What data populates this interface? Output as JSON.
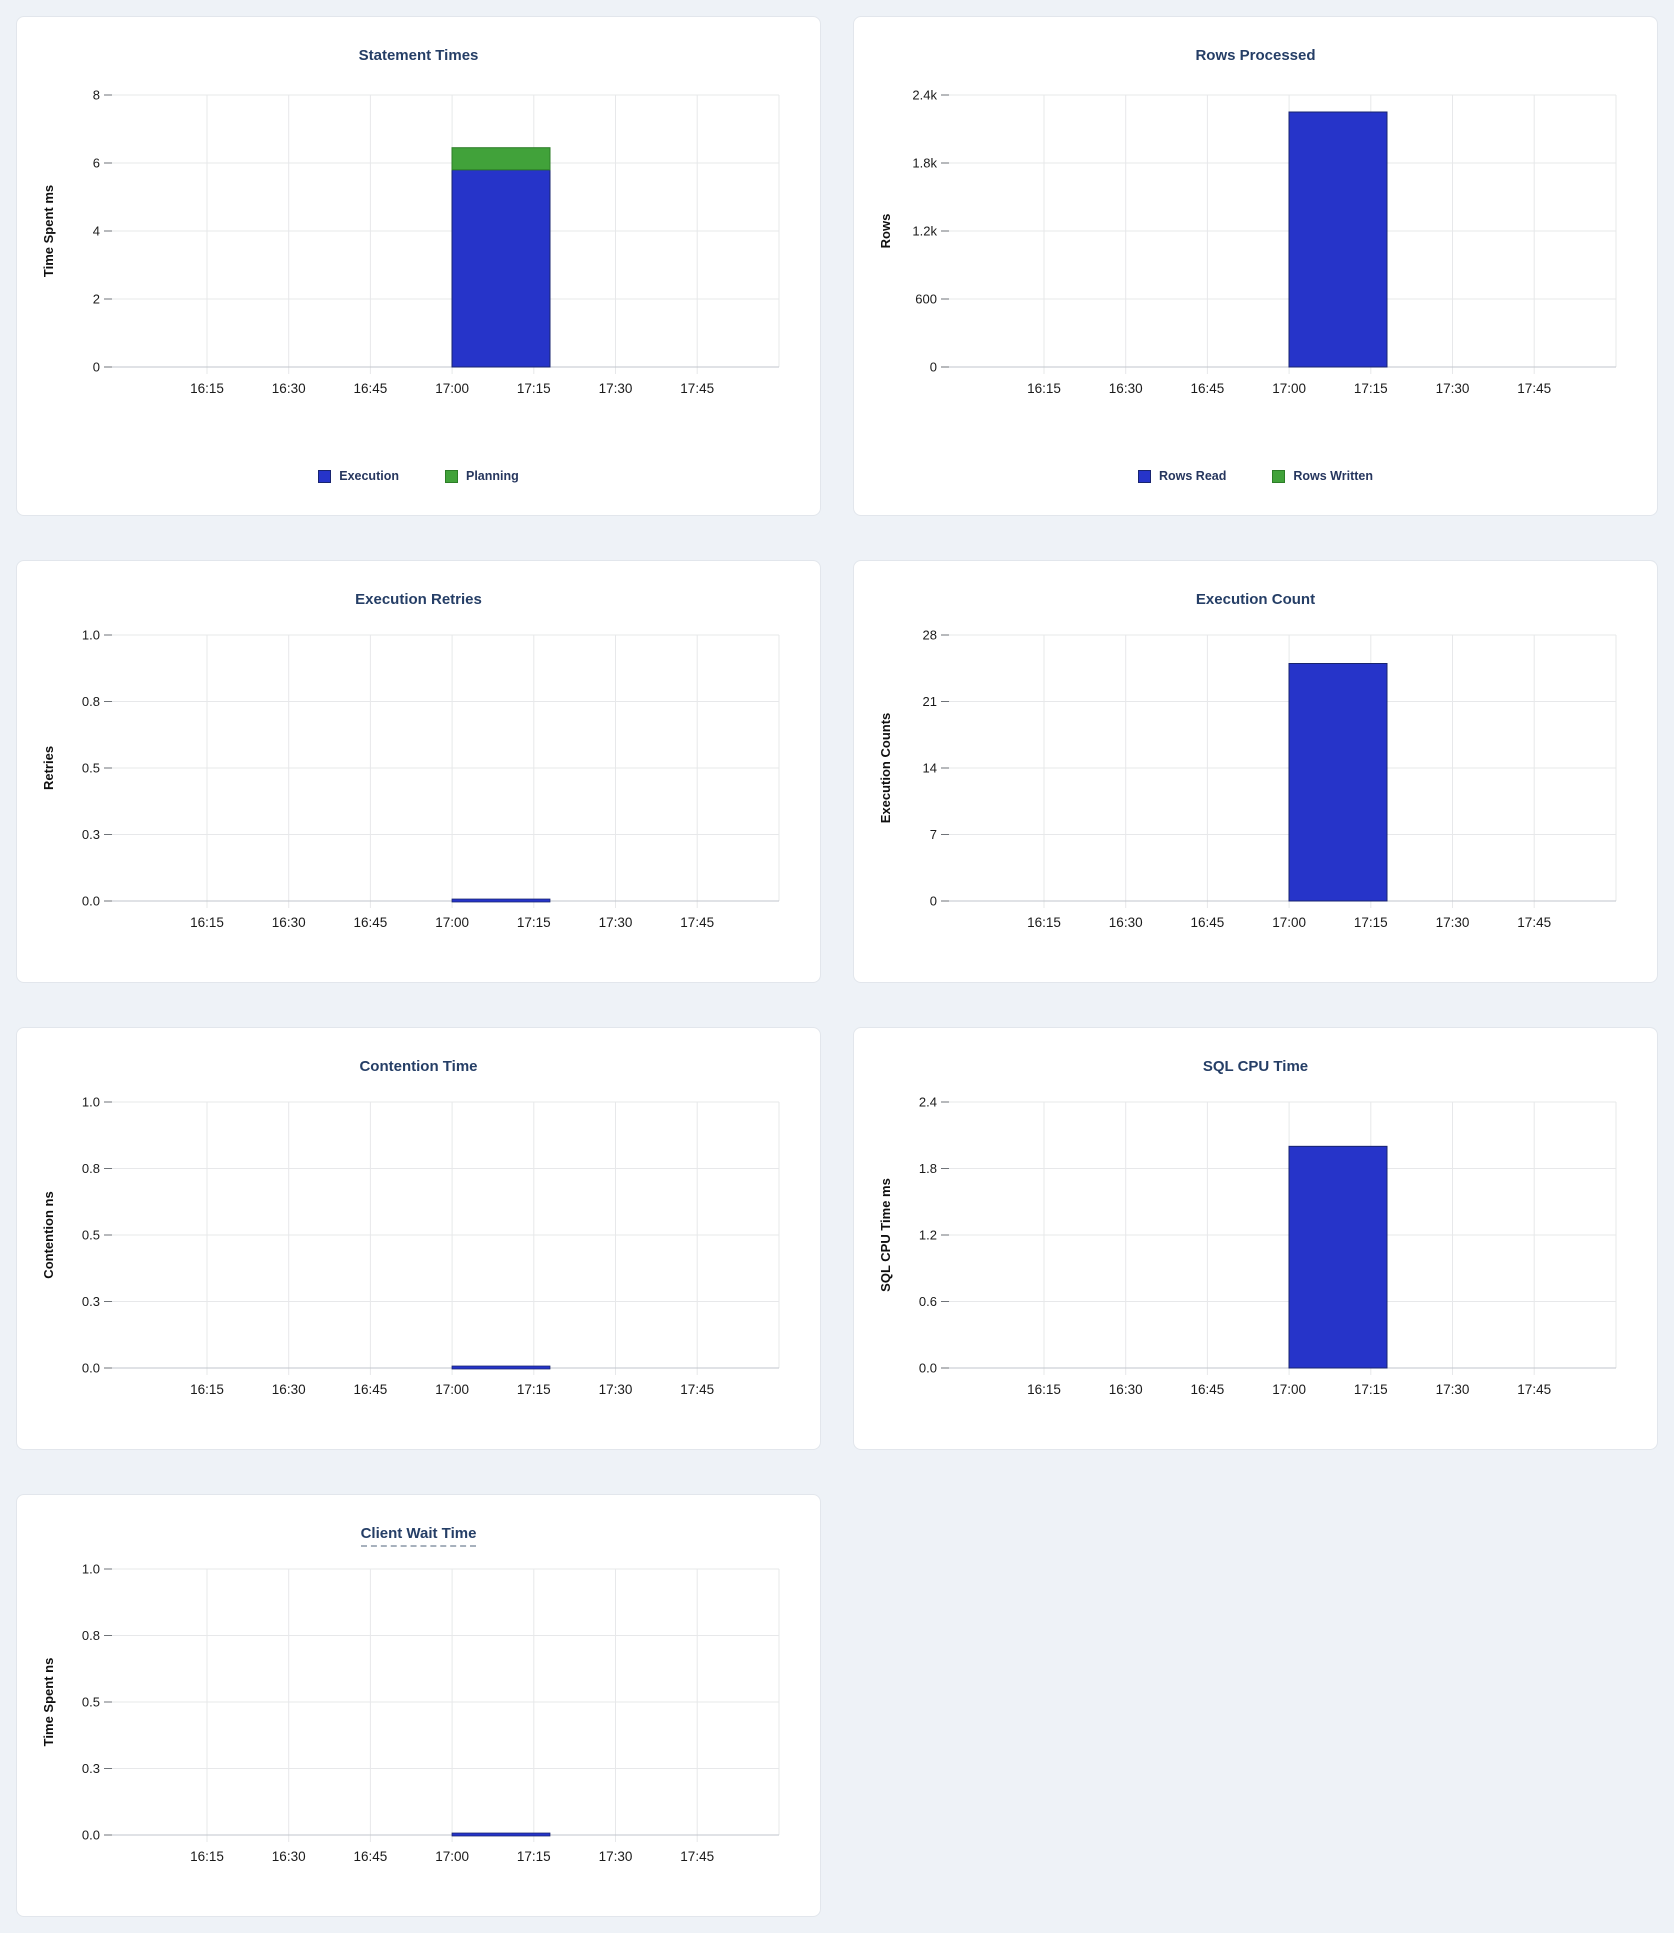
{
  "page": {
    "background": "#eef2f7",
    "card_background": "#ffffff",
    "card_border": "#e2e6ec"
  },
  "colors": {
    "title": "#253e66",
    "blue": "#2634c9",
    "blue_stroke": "#18246f",
    "green": "#41a23a",
    "green_stroke": "#2c7d27",
    "gridline": "#e7e8ea",
    "zero_line": "#c2c6cc",
    "tick_mark": "#6f7378",
    "tick_label": "#1a1a1a",
    "axis_label": "#0f0f0f"
  },
  "chart_data": [
    {
      "type": "bar",
      "title": "Statement Times",
      "title_underline": false,
      "ylabel": "Time Spent ms",
      "ylim": [
        0,
        8
      ],
      "ytick_labels": [
        "8",
        "6",
        "4",
        "2",
        "0"
      ],
      "xtick_labels": [
        "16:15",
        "16:30",
        "16:45",
        "17:00",
        "17:15",
        "17:30",
        "17:45"
      ],
      "grid": true,
      "legend_position": "bottom",
      "legend": [
        "Execution",
        "Planning"
      ],
      "bar_window": {
        "start": "17:00",
        "end": "17:18"
      },
      "series": [
        {
          "name": "Execution",
          "color": "blue",
          "value": 5.8
        },
        {
          "name": "Planning",
          "color": "green",
          "value": 0.65
        }
      ]
    },
    {
      "type": "bar",
      "title": "Rows Processed",
      "title_underline": false,
      "ylabel": "Rows",
      "ylim": [
        0,
        2400
      ],
      "ytick_labels": [
        "2.4k",
        "1.8k",
        "1.2k",
        "600",
        "0"
      ],
      "xtick_labels": [
        "16:15",
        "16:30",
        "16:45",
        "17:00",
        "17:15",
        "17:30",
        "17:45"
      ],
      "grid": true,
      "legend_position": "bottom",
      "legend": [
        "Rows Read",
        "Rows Written"
      ],
      "bar_window": {
        "start": "17:00",
        "end": "17:18"
      },
      "series": [
        {
          "name": "Rows Read",
          "color": "blue",
          "value": 2250
        },
        {
          "name": "Rows Written",
          "color": "green",
          "value": 0
        }
      ]
    },
    {
      "type": "bar",
      "title": "Execution Retries",
      "title_underline": false,
      "ylabel": "Retries",
      "ylim": [
        0,
        1
      ],
      "ytick_labels": [
        "1.0",
        "0.8",
        "0.5",
        "0.3",
        "0.0"
      ],
      "xtick_labels": [
        "16:15",
        "16:30",
        "16:45",
        "17:00",
        "17:15",
        "17:30",
        "17:45"
      ],
      "grid": true,
      "legend_position": "none",
      "legend": null,
      "bar_window": {
        "start": "17:00",
        "end": "17:18"
      },
      "series": [
        {
          "name": "Retries",
          "color": "blue",
          "value": 0
        }
      ]
    },
    {
      "type": "bar",
      "title": "Execution Count",
      "title_underline": false,
      "ylabel": "Execution Counts",
      "ylim": [
        0,
        28
      ],
      "ytick_labels": [
        "28",
        "21",
        "14",
        "7",
        "0"
      ],
      "xtick_labels": [
        "16:15",
        "16:30",
        "16:45",
        "17:00",
        "17:15",
        "17:30",
        "17:45"
      ],
      "grid": true,
      "legend_position": "none",
      "legend": null,
      "bar_window": {
        "start": "17:00",
        "end": "17:18"
      },
      "series": [
        {
          "name": "Execution Count",
          "color": "blue",
          "value": 25
        }
      ]
    },
    {
      "type": "bar",
      "title": "Contention Time",
      "title_underline": false,
      "ylabel": "Contention ns",
      "ylim": [
        0,
        1
      ],
      "ytick_labels": [
        "1.0",
        "0.8",
        "0.5",
        "0.3",
        "0.0"
      ],
      "xtick_labels": [
        "16:15",
        "16:30",
        "16:45",
        "17:00",
        "17:15",
        "17:30",
        "17:45"
      ],
      "grid": true,
      "legend_position": "none",
      "legend": null,
      "bar_window": {
        "start": "17:00",
        "end": "17:18"
      },
      "series": [
        {
          "name": "Contention",
          "color": "blue",
          "value": 0
        }
      ]
    },
    {
      "type": "bar",
      "title": "SQL CPU Time",
      "title_underline": false,
      "ylabel": "SQL CPU Time ms",
      "ylim": [
        0,
        2.4
      ],
      "ytick_labels": [
        "2.4",
        "1.8",
        "1.2",
        "0.6",
        "0.0"
      ],
      "xtick_labels": [
        "16:15",
        "16:30",
        "16:45",
        "17:00",
        "17:15",
        "17:30",
        "17:45"
      ],
      "grid": true,
      "legend_position": "none",
      "legend": null,
      "bar_window": {
        "start": "17:00",
        "end": "17:18"
      },
      "series": [
        {
          "name": "SQL CPU Time",
          "color": "blue",
          "value": 2.0
        }
      ]
    },
    {
      "type": "bar",
      "title": "Client Wait Time",
      "title_underline": true,
      "ylabel": "Time Spent ns",
      "ylim": [
        0,
        1
      ],
      "ytick_labels": [
        "1.0",
        "0.8",
        "0.5",
        "0.3",
        "0.0"
      ],
      "xtick_labels": [
        "16:15",
        "16:30",
        "16:45",
        "17:00",
        "17:15",
        "17:30",
        "17:45"
      ],
      "grid": true,
      "legend_position": "none",
      "legend": null,
      "bar_window": {
        "start": "17:00",
        "end": "17:18"
      },
      "series": [
        {
          "name": "Client Wait",
          "color": "blue",
          "value": 0
        }
      ]
    }
  ]
}
